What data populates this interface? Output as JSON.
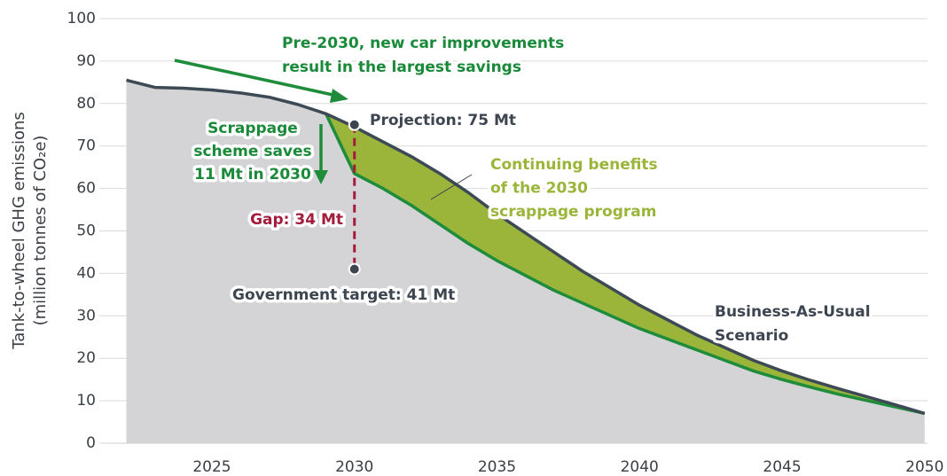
{
  "chart_data": {
    "type": "area",
    "y_label": [
      "Tank-to-wheel GHG emissions",
      "(million tonnes of CO₂e)"
    ],
    "x": [
      2022,
      2023,
      2024,
      2025,
      2026,
      2027,
      2028,
      2029,
      2030,
      2031,
      2032,
      2033,
      2034,
      2035,
      2036,
      2037,
      2038,
      2039,
      2040,
      2041,
      2042,
      2043,
      2044,
      2045,
      2046,
      2047,
      2048,
      2049,
      2050
    ],
    "series": [
      {
        "name": [
          "Business-As-Usual",
          "Scenario"
        ],
        "color": "#3d4a55",
        "fill": "#d4d4d6",
        "values": [
          85.5,
          83.8,
          83.6,
          83.2,
          82.5,
          81.5,
          79.8,
          77.6,
          74.5,
          71,
          67.5,
          63.5,
          59,
          54,
          49.5,
          45,
          40.5,
          36.5,
          32.5,
          29,
          25.5,
          22.5,
          19.5,
          17,
          14.8,
          12.8,
          10.9,
          9,
          7
        ]
      },
      {
        "color": "#1e8c3a",
        "fill": "#9ab53a",
        "values": [
          null,
          null,
          null,
          null,
          null,
          null,
          null,
          77.6,
          63.5,
          60,
          56,
          51.5,
          47,
          43,
          39.5,
          36,
          33,
          30,
          27,
          24.5,
          22,
          19.5,
          17,
          15,
          13.2,
          11.5,
          10,
          8.5,
          7
        ]
      }
    ],
    "markers": [
      {
        "x": 2030,
        "y": 75,
        "label": "Projection: 75 Mt"
      },
      {
        "x": 2030,
        "y": 41,
        "label": "Government target: 41 Mt"
      }
    ],
    "gap_label": "Gap: 34 Mt",
    "annotations": [
      {
        "lines": [
          "Pre-2030, new car improvements",
          "result in the largest savings"
        ],
        "color": "#1a8a3a"
      },
      {
        "lines": [
          "Scrappage",
          "scheme saves",
          "11 Mt in 2030"
        ],
        "color": "#1a8a3a"
      },
      {
        "lines": [
          "Continuing benefits",
          "of the 2030",
          "scrappage program"
        ],
        "color": "#9ab53a"
      }
    ],
    "xlim": [
      2021.3,
      2050.1
    ],
    "ylim": [
      0,
      100
    ],
    "xticks": [
      2025,
      2030,
      2035,
      2040,
      2045,
      2050
    ],
    "yticks": [
      0,
      10,
      20,
      30,
      40,
      50,
      60,
      70,
      80,
      90,
      100
    ],
    "grid": true
  }
}
